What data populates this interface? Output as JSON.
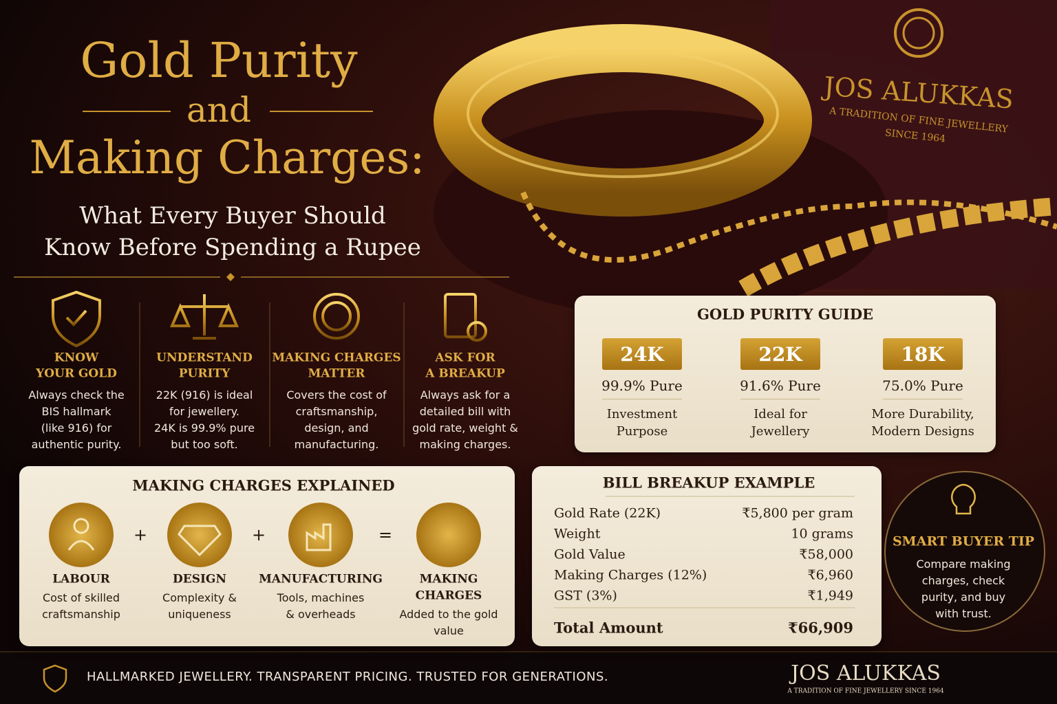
{
  "header": {
    "title_line1": "Gold Purity",
    "title_line2": "and",
    "title_line3": "Making Charges:",
    "subtitle_line1": "What Every Buyer Should",
    "subtitle_line2": "Know Before Spending a Rupee"
  },
  "brand": {
    "name": "JOS ALUKKAS",
    "tagline_line1": "A TRADITION OF FINE JEWELLERY",
    "tagline_line2": "SINCE 1964"
  },
  "tips": [
    {
      "title_lines": [
        "KNOW",
        "YOUR GOLD"
      ],
      "text_lines": [
        "Always check the",
        "BIS hallmark",
        "(like 916) for",
        "authentic purity."
      ]
    },
    {
      "title_lines": [
        "UNDERSTAND",
        "PURITY"
      ],
      "text_lines": [
        "22K (916) is ideal",
        "for jewellery.",
        "24K is 99.9% pure",
        "but too soft."
      ]
    },
    {
      "title_lines": [
        "MAKING CHARGES",
        "MATTER"
      ],
      "text_lines": [
        "Covers the cost of",
        "craftsmanship,",
        "design, and",
        "manufacturing."
      ]
    },
    {
      "title_lines": [
        "ASK FOR",
        "A BREAKUP"
      ],
      "text_lines": [
        "Always ask for a",
        "detailed bill with",
        "gold rate, weight &",
        "making charges."
      ]
    }
  ],
  "purity_guide": {
    "title": "GOLD PURITY GUIDE",
    "items": [
      {
        "karat": "24K",
        "purity": "99.9% Pure",
        "use_lines": [
          "Investment",
          "Purpose"
        ]
      },
      {
        "karat": "22K",
        "purity": "91.6% Pure",
        "use_lines": [
          "Ideal for",
          "Jewellery"
        ]
      },
      {
        "karat": "18K",
        "purity": "75.0% Pure",
        "use_lines": [
          "More Durability,",
          "Modern Designs"
        ]
      }
    ]
  },
  "making_charges": {
    "title": "MAKING CHARGES EXPLAINED",
    "operators": [
      "+",
      "+",
      "="
    ],
    "items": [
      {
        "label_lines": [
          "LABOUR"
        ],
        "desc_lines": [
          "Cost of skilled",
          "craftsmanship"
        ]
      },
      {
        "label_lines": [
          "DESIGN"
        ],
        "desc_lines": [
          "Complexity &",
          "uniqueness"
        ]
      },
      {
        "label_lines": [
          "MANUFACTURING"
        ],
        "desc_lines": [
          "Tools, machines",
          "& overheads"
        ]
      },
      {
        "label_lines": [
          "MAKING",
          "CHARGES"
        ],
        "desc_lines": [
          "Added to the gold",
          "value"
        ]
      }
    ]
  },
  "bill": {
    "title": "BILL BREAKUP EXAMPLE",
    "rows": [
      [
        "Gold Rate (22K)",
        "₹5,800 per gram"
      ],
      [
        "Weight",
        "10 grams"
      ],
      [
        "Gold Value",
        "₹58,000"
      ],
      [
        "Making Charges (12%)",
        "₹6,960"
      ],
      [
        "GST (3%)",
        "₹1,949"
      ]
    ],
    "total": [
      "Total Amount",
      "₹66,909"
    ]
  },
  "smart_tip": {
    "title": "SMART BUYER TIP",
    "text_lines": [
      "Compare making",
      "charges, check",
      "purity, and buy",
      "with trust."
    ]
  },
  "footer": {
    "text": "HALLMARKED JEWELLERY. TRANSPARENT PRICING. TRUSTED FOR GENERATIONS.",
    "brand": "JOS ALUKKAS",
    "tagline": "A TRADITION OF FINE JEWELLERY SINCE 1964"
  }
}
